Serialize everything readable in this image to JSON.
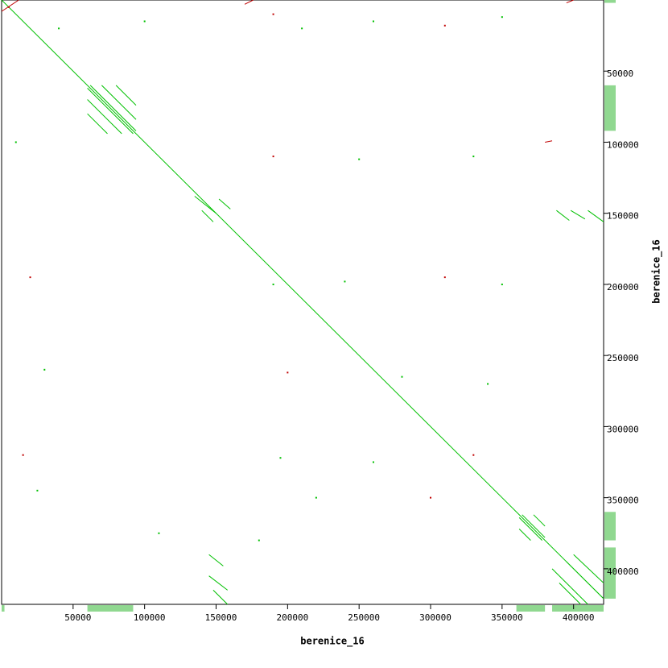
{
  "chart_data": {
    "type": "dotplot",
    "xlabel": "berenice_16",
    "ylabel": "berenice_16",
    "xlim": [
      0,
      421000
    ],
    "ylim": [
      0,
      425000
    ],
    "xticks": [
      50000,
      100000,
      150000,
      200000,
      250000,
      300000,
      350000,
      400000
    ],
    "yticks": [
      50000,
      100000,
      150000,
      200000,
      250000,
      300000,
      350000,
      400000
    ],
    "forward_color": "#00c000",
    "reverse_color": "#c00000",
    "coverage_color": "#90d890",
    "forward": [
      [
        0,
        0,
        421000,
        421000
      ],
      [
        60000,
        62000,
        92000,
        94000
      ],
      [
        62000,
        60000,
        94000,
        92000
      ],
      [
        60000,
        70000,
        84000,
        94000
      ],
      [
        70000,
        60000,
        94000,
        84000
      ],
      [
        60000,
        80000,
        74000,
        94000
      ],
      [
        80000,
        60000,
        94000,
        74000
      ],
      [
        362000,
        364000,
        378000,
        380000
      ],
      [
        364000,
        362000,
        380000,
        378000
      ],
      [
        362000,
        372000,
        370000,
        380000
      ],
      [
        372000,
        362000,
        380000,
        370000
      ],
      [
        135000,
        138000,
        150000,
        150000
      ],
      [
        140000,
        148000,
        148000,
        156000
      ],
      [
        152000,
        140000,
        160000,
        147000
      ],
      [
        388000,
        148000,
        397000,
        155000
      ],
      [
        398000,
        148000,
        408000,
        154000
      ],
      [
        410000,
        148000,
        421000,
        156000
      ],
      [
        385000,
        400000,
        410000,
        425000
      ],
      [
        395000,
        395000,
        421000,
        421000
      ],
      [
        400000,
        390000,
        421000,
        410000
      ],
      [
        390000,
        410000,
        405000,
        425000
      ],
      [
        145000,
        390000,
        155000,
        398000
      ],
      [
        145000,
        405000,
        158000,
        415000
      ],
      [
        148000,
        415000,
        158000,
        425000
      ]
    ],
    "reverse": [
      [
        0,
        8000,
        12000,
        0
      ],
      [
        170000,
        3000,
        176000,
        0
      ],
      [
        395000,
        2000,
        400000,
        0
      ],
      [
        380000,
        100000,
        385000,
        99000
      ]
    ],
    "coverage": [
      [
        0,
        2000
      ],
      [
        60000,
        92000
      ],
      [
        360000,
        380000
      ],
      [
        385000,
        421000
      ]
    ],
    "points": [
      [
        5000,
        5000
      ],
      [
        40000,
        20000
      ],
      [
        100000,
        15000
      ],
      [
        190000,
        10000
      ],
      [
        210000,
        20000
      ],
      [
        260000,
        15000
      ],
      [
        310000,
        18000
      ],
      [
        350000,
        12000
      ],
      [
        10000,
        100000
      ],
      [
        190000,
        110000
      ],
      [
        250000,
        112000
      ],
      [
        330000,
        110000
      ],
      [
        20000,
        195000
      ],
      [
        190000,
        200000
      ],
      [
        240000,
        198000
      ],
      [
        310000,
        195000
      ],
      [
        350000,
        200000
      ],
      [
        30000,
        260000
      ],
      [
        200000,
        262000
      ],
      [
        280000,
        265000
      ],
      [
        340000,
        270000
      ],
      [
        15000,
        320000
      ],
      [
        195000,
        322000
      ],
      [
        260000,
        325000
      ],
      [
        330000,
        320000
      ],
      [
        25000,
        345000
      ],
      [
        220000,
        350000
      ],
      [
        300000,
        350000
      ],
      [
        180000,
        380000
      ],
      [
        110000,
        375000
      ]
    ]
  }
}
